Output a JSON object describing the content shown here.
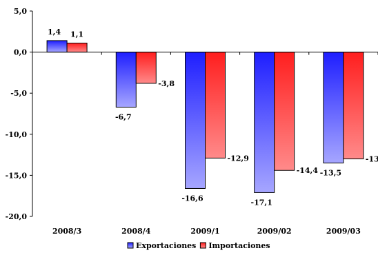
{
  "chart_data": {
    "type": "bar",
    "categories": [
      "2008/3",
      "2008/4",
      "2009/1",
      "2009/02",
      "2009/03"
    ],
    "series": [
      {
        "name": "Exportaciones",
        "values": [
          1.4,
          -6.7,
          -16.6,
          -17.1,
          -13.5
        ],
        "labels": [
          "1,4",
          "-6,7",
          "-16,6",
          "-17,1",
          "-13,5"
        ],
        "color_top": "#1e1eff",
        "color_bottom": "#a6a6ff"
      },
      {
        "name": "Importaciones",
        "values": [
          1.1,
          -3.8,
          -12.9,
          -14.4,
          -13
        ],
        "labels": [
          "1,1",
          "-3,8",
          "-12,9",
          "-14,4",
          "-13"
        ],
        "color_top": "#ff1e1e",
        "color_bottom": "#ff8a8a"
      }
    ],
    "y_ticks": [
      5,
      0,
      -5,
      -10,
      -15,
      -20
    ],
    "y_tick_labels": [
      "5,0",
      "0,0",
      "-5,0",
      "-10,0",
      "-15,0",
      "-20,0"
    ],
    "ylim": [
      -20,
      5
    ],
    "grid": false,
    "legend": "bottom",
    "title": "",
    "xlabel": "",
    "ylabel": ""
  }
}
